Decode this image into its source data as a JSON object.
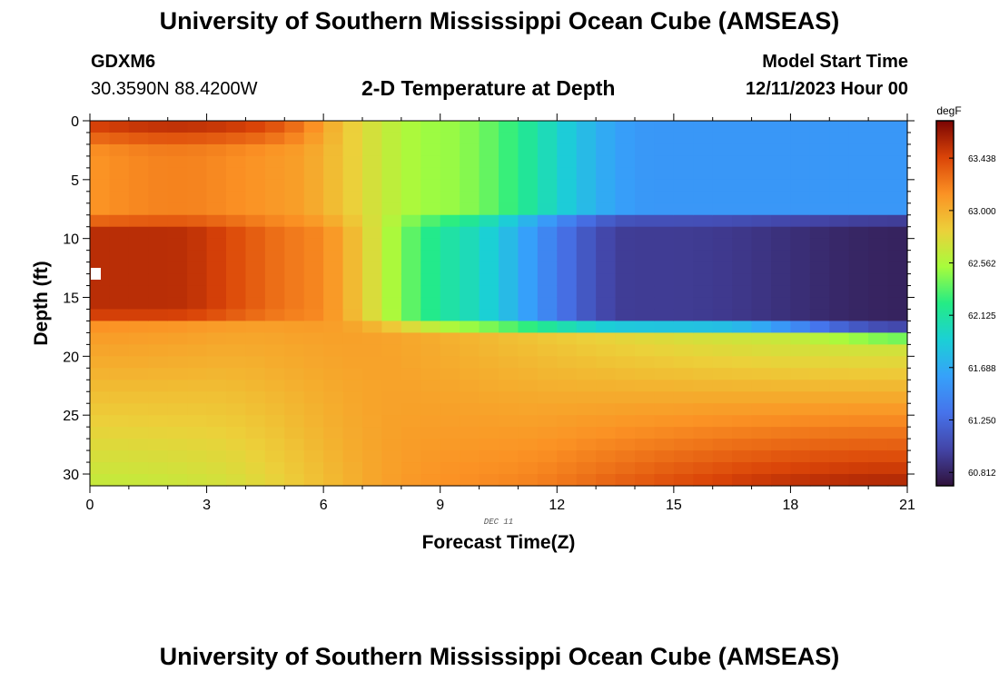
{
  "header": {
    "title": "University of Southern Mississippi Ocean Cube (AMSEAS)",
    "station": "GDXM6",
    "coords": "30.3590N  88.4200W",
    "subtitle": "2-D Temperature at Depth",
    "model_start_label": "Model Start Time",
    "model_start_value": "12/11/2023 Hour 00"
  },
  "footer": {
    "title": "University of Southern Mississippi Ocean Cube (AMSEAS)"
  },
  "chart_data": {
    "type": "heatmap",
    "title": "2-D Temperature at Depth",
    "xlabel": "Forecast Time(Z)",
    "ylabel": "Depth (ft)",
    "date_label": "DEC 11",
    "x_ticks": [
      "0",
      "3",
      "6",
      "9",
      "12",
      "15",
      "18",
      "21"
    ],
    "x_tick_values": [
      0,
      3,
      6,
      9,
      12,
      15,
      18,
      21
    ],
    "y_ticks": [
      "0",
      "5",
      "10",
      "15",
      "20",
      "25",
      "30"
    ],
    "y_tick_values": [
      0,
      5,
      10,
      15,
      20,
      25,
      30
    ],
    "xlim": [
      0,
      21
    ],
    "ylim": [
      0,
      31
    ],
    "y_inverted": true,
    "grid": {
      "x_step_hours": 0.5,
      "y_step_ft": 1
    },
    "colorbar": {
      "units": "degF",
      "min": 60.7,
      "max": 63.75,
      "tick_labels": [
        "63.438",
        "63.000",
        "62.562",
        "62.125",
        "61.688",
        "61.250",
        "60.812"
      ],
      "tick_values": [
        63.438,
        63.0,
        62.562,
        62.125,
        61.688,
        61.25,
        60.812
      ]
    },
    "field_description_degF": {
      "surface_0_7ft": {
        "t0": 63.05,
        "t21": 61.5
      },
      "layer_8_16ft": {
        "t0": 63.55,
        "t21": 60.85
      },
      "layer_18_31ft": {
        "t0_top": 63.1,
        "t0_bottom": 62.65,
        "t21_top": 62.4,
        "t21_bottom": 63.55
      }
    }
  }
}
